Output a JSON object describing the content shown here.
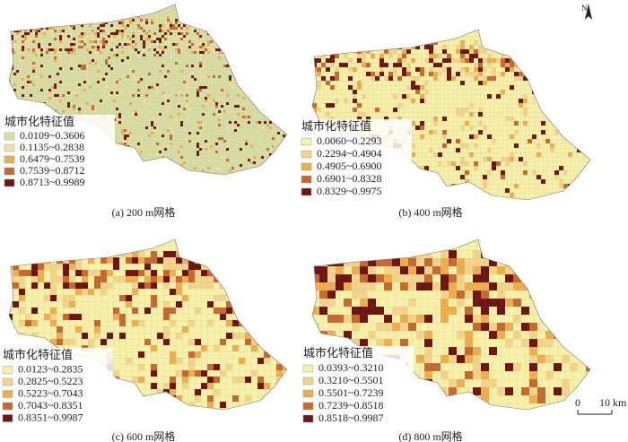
{
  "panels": [
    {
      "caption": "(a) 200 m网格",
      "legend_title": "城市化特征值",
      "legend": [
        {
          "label": "0.0109~0.3606",
          "color": "#dcdfa4"
        },
        {
          "label": "0.1135~0.2838",
          "color": "#efe4a0"
        },
        {
          "label": "0.6479~0.7539",
          "color": "#eeae4e"
        },
        {
          "label": "0.7539~0.8712",
          "color": "#c56a2e"
        },
        {
          "label": "0.8713~0.9989",
          "color": "#6e1414"
        }
      ]
    },
    {
      "caption": "(b) 400 m网格",
      "legend_title": "城市化特征值",
      "legend": [
        {
          "label": "0.0060~0.2293",
          "color": "#f6f0a8"
        },
        {
          "label": "0.2294~0.4904",
          "color": "#f2d48a"
        },
        {
          "label": "0.4905~0.6900",
          "color": "#eeae4e"
        },
        {
          "label": "0.6901~0.8328",
          "color": "#c56a2e"
        },
        {
          "label": "0.8329~0.9975",
          "color": "#6e1414"
        }
      ]
    },
    {
      "caption": "(c) 600 m网格",
      "legend_title": "城市化特征值",
      "legend": [
        {
          "label": "0.0123~0.2835",
          "color": "#f6f0a8"
        },
        {
          "label": "0.2825~0.5223",
          "color": "#f2d48a"
        },
        {
          "label": "0.5223~0.7043",
          "color": "#eeae4e"
        },
        {
          "label": "0.7043~0.8351",
          "color": "#c56a2e"
        },
        {
          "label": "0.8351~0.9987",
          "color": "#6e1414"
        }
      ]
    },
    {
      "caption": "(d) 800 m网格",
      "legend_title": "城市化特征值",
      "legend": [
        {
          "label": "0.0393~0.3210",
          "color": "#f6f0a8"
        },
        {
          "label": "0.3210~0.5501",
          "color": "#f2d48a"
        },
        {
          "label": "0.5501~0.7239",
          "color": "#eeae4e"
        },
        {
          "label": "0.7239~0.8518",
          "color": "#c56a2e"
        },
        {
          "label": "0.8518~0.9987",
          "color": "#6e1414"
        }
      ]
    }
  ],
  "north": "N",
  "scale_bar": {
    "zero": "0",
    "label": "10 km"
  }
}
